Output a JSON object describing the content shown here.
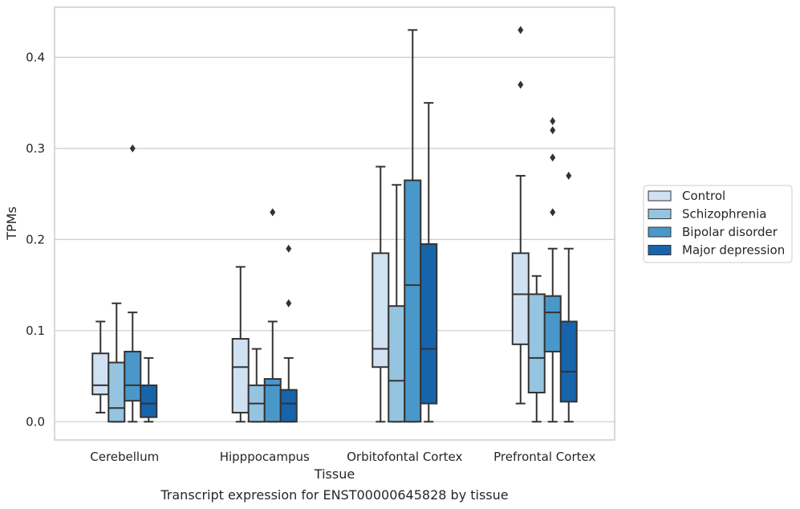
{
  "caption": "Transcript expression for ENST00000645828 by tissue",
  "chart_data": {
    "type": "box",
    "title": "",
    "xlabel": "Tissue",
    "ylabel": "TPMs",
    "ylim": [
      -0.02,
      0.455
    ],
    "yticks": [
      "0.0",
      "0.1",
      "0.2",
      "0.3",
      "0.4"
    ],
    "grid": "horizontal",
    "legend_position": "right",
    "categories": [
      "Cerebellum",
      "Hipppocampus",
      "Orbitofontal Cortex",
      "Prefrontal Cortex"
    ],
    "series": [
      {
        "name": "Control",
        "color": "#d0e1f2",
        "boxes": [
          {
            "whislo": 0.01,
            "q1": 0.03,
            "med": 0.04,
            "q3": 0.075,
            "whishi": 0.11,
            "fliers": []
          },
          {
            "whislo": 0.0,
            "q1": 0.01,
            "med": 0.06,
            "q3": 0.091,
            "whishi": 0.17,
            "fliers": []
          },
          {
            "whislo": 0.0,
            "q1": 0.06,
            "med": 0.08,
            "q3": 0.185,
            "whishi": 0.28,
            "fliers": []
          },
          {
            "whislo": 0.02,
            "q1": 0.085,
            "med": 0.14,
            "q3": 0.185,
            "whishi": 0.27,
            "fliers": [
              0.37,
              0.43
            ]
          }
        ]
      },
      {
        "name": "Schizophrenia",
        "color": "#94c4df",
        "boxes": [
          {
            "whislo": 0.0,
            "q1": 0.0,
            "med": 0.015,
            "q3": 0.065,
            "whishi": 0.13,
            "fliers": []
          },
          {
            "whislo": 0.0,
            "q1": 0.0,
            "med": 0.02,
            "q3": 0.04,
            "whishi": 0.08,
            "fliers": []
          },
          {
            "whislo": 0.0,
            "q1": 0.0,
            "med": 0.045,
            "q3": 0.127,
            "whishi": 0.26,
            "fliers": []
          },
          {
            "whislo": 0.0,
            "q1": 0.032,
            "med": 0.07,
            "q3": 0.14,
            "whishi": 0.16,
            "fliers": []
          }
        ]
      },
      {
        "name": "Bipolar disorder",
        "color": "#4a98c9",
        "boxes": [
          {
            "whislo": 0.0,
            "q1": 0.023,
            "med": 0.04,
            "q3": 0.077,
            "whishi": 0.12,
            "fliers": [
              0.3
            ]
          },
          {
            "whislo": 0.0,
            "q1": 0.0,
            "med": 0.04,
            "q3": 0.047,
            "whishi": 0.11,
            "fliers": [
              0.23
            ]
          },
          {
            "whislo": 0.0,
            "q1": 0.0,
            "med": 0.15,
            "q3": 0.265,
            "whishi": 0.43,
            "fliers": []
          },
          {
            "whislo": 0.0,
            "q1": 0.077,
            "med": 0.12,
            "q3": 0.138,
            "whishi": 0.19,
            "fliers": [
              0.23,
              0.29,
              0.32,
              0.33
            ]
          }
        ]
      },
      {
        "name": "Major depression",
        "color": "#1764ab",
        "boxes": [
          {
            "whislo": 0.0,
            "q1": 0.005,
            "med": 0.02,
            "q3": 0.04,
            "whishi": 0.07,
            "fliers": []
          },
          {
            "whislo": 0.0,
            "q1": 0.0,
            "med": 0.02,
            "q3": 0.035,
            "whishi": 0.07,
            "fliers": [
              0.13,
              0.19
            ]
          },
          {
            "whislo": 0.0,
            "q1": 0.02,
            "med": 0.08,
            "q3": 0.195,
            "whishi": 0.35,
            "fliers": []
          },
          {
            "whislo": 0.0,
            "q1": 0.022,
            "med": 0.055,
            "q3": 0.11,
            "whishi": 0.19,
            "fliers": [
              0.27
            ]
          }
        ]
      }
    ]
  }
}
